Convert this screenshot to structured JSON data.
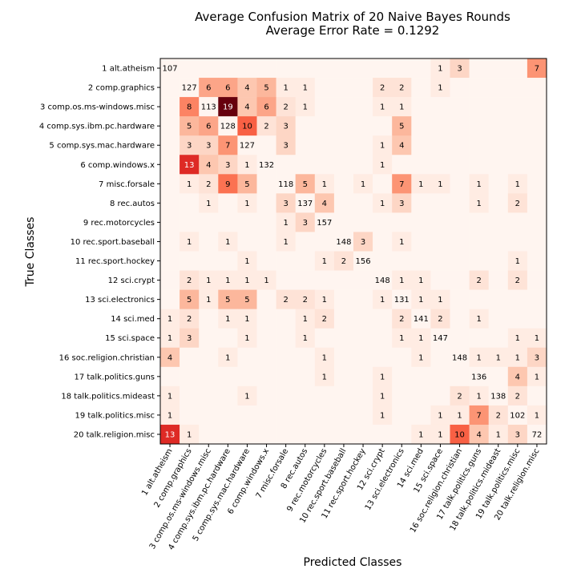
{
  "chart_data": {
    "type": "heatmap",
    "title": "Average Confusion Matrix of 20 Naive Bayes Rounds",
    "subtitle": "Average Error Rate = 0.1292",
    "xlabel": "Predicted Classes",
    "ylabel": "True Classes",
    "colormap": "Reds",
    "color_min": "#fff5f0",
    "color_max": "#67000d",
    "grid": false,
    "y_categories": [
      "1 alt.atheism",
      "2 comp.graphics",
      "3 comp.os.ms-windows.misc",
      "4 comp.sys.ibm.pc.hardware",
      "5 comp.sys.mac.hardware",
      "6 comp.windows.x",
      "7 misc.forsale",
      "8 rec.autos",
      "9 rec.motorcycles",
      "10 rec.sport.baseball",
      "11 rec.sport.hockey",
      "12 sci.crypt",
      "13 sci.electronics",
      "14 sci.med",
      "15 sci.space",
      "16 soc.religion.christian",
      "17 talk.politics.guns",
      "18 talk.politics.mideast",
      "19 talk.politics.misc",
      "20 talk.religion.misc"
    ],
    "x_categories": [
      "1 alt.atheism",
      "2 comp.graphics",
      "3 comp.os.ms-windows.misc",
      "4 comp.sys.ibm.pc.hardware",
      "5 comp.sys.mac.hardware",
      "6 comp.windows.x",
      "7 misc.forsale",
      "8 rec.autos",
      "9 rec.motorcycles",
      "10 rec.sport.baseball",
      "11 rec.sport.hockey",
      "12 sci.crypt",
      "13 sci.electronics",
      "14 sci.med",
      "15 sci.space",
      "16 soc.religion.christian",
      "17 talk.politics.guns",
      "18 talk.politics.mideast",
      "19 talk.politics.misc",
      "20 talk.religion.misc"
    ],
    "values": [
      [
        107,
        0,
        0,
        0,
        0,
        0,
        0,
        0,
        0,
        0,
        0,
        0,
        0,
        0,
        1,
        3,
        0,
        0,
        0,
        7
      ],
      [
        0,
        127,
        6,
        6,
        4,
        5,
        1,
        1,
        0,
        0,
        0,
        2,
        2,
        0,
        1,
        0,
        0,
        0,
        0,
        0
      ],
      [
        0,
        8,
        113,
        19,
        4,
        6,
        2,
        1,
        0,
        0,
        0,
        1,
        1,
        0,
        0,
        0,
        0,
        0,
        0,
        0
      ],
      [
        0,
        5,
        6,
        128,
        10,
        2,
        3,
        0,
        0,
        0,
        0,
        0,
        5,
        0,
        0,
        0,
        0,
        0,
        0,
        0
      ],
      [
        0,
        3,
        3,
        7,
        127,
        0,
        3,
        0,
        0,
        0,
        0,
        1,
        4,
        0,
        0,
        0,
        0,
        0,
        0,
        0
      ],
      [
        0,
        13,
        4,
        3,
        1,
        132,
        0,
        0,
        0,
        0,
        0,
        1,
        0,
        0,
        0,
        0,
        0,
        0,
        0,
        0
      ],
      [
        0,
        1,
        2,
        9,
        5,
        0,
        118,
        5,
        1,
        0,
        1,
        0,
        7,
        1,
        1,
        0,
        1,
        0,
        1,
        0
      ],
      [
        0,
        0,
        1,
        0,
        1,
        0,
        3,
        137,
        4,
        0,
        0,
        1,
        3,
        0,
        0,
        0,
        1,
        0,
        2,
        0
      ],
      [
        0,
        0,
        0,
        0,
        0,
        0,
        1,
        3,
        157,
        0,
        0,
        0,
        0,
        0,
        0,
        0,
        0,
        0,
        0,
        0
      ],
      [
        0,
        1,
        0,
        1,
        0,
        0,
        1,
        0,
        0,
        148,
        3,
        0,
        1,
        0,
        0,
        0,
        0,
        0,
        0,
        0
      ],
      [
        0,
        0,
        0,
        0,
        1,
        0,
        0,
        0,
        1,
        2,
        156,
        0,
        0,
        0,
        0,
        0,
        0,
        0,
        1,
        0
      ],
      [
        0,
        2,
        1,
        1,
        1,
        1,
        0,
        0,
        0,
        0,
        0,
        148,
        1,
        1,
        0,
        0,
        2,
        0,
        2,
        0
      ],
      [
        0,
        5,
        1,
        5,
        5,
        0,
        2,
        2,
        1,
        0,
        0,
        1,
        131,
        1,
        1,
        0,
        0,
        0,
        0,
        0
      ],
      [
        1,
        2,
        0,
        1,
        1,
        0,
        0,
        1,
        2,
        0,
        0,
        0,
        2,
        141,
        2,
        0,
        1,
        0,
        0,
        0
      ],
      [
        1,
        3,
        0,
        0,
        1,
        0,
        0,
        1,
        0,
        0,
        0,
        0,
        1,
        1,
        147,
        0,
        0,
        0,
        1,
        1
      ],
      [
        4,
        0,
        0,
        1,
        0,
        0,
        0,
        0,
        1,
        0,
        0,
        0,
        0,
        1,
        0,
        148,
        1,
        1,
        1,
        3
      ],
      [
        0,
        0,
        0,
        0,
        0,
        0,
        0,
        0,
        1,
        0,
        0,
        1,
        0,
        0,
        0,
        0,
        136,
        0,
        4,
        1
      ],
      [
        1,
        0,
        0,
        0,
        1,
        0,
        0,
        0,
        0,
        0,
        0,
        1,
        0,
        0,
        0,
        2,
        1,
        138,
        2,
        0
      ],
      [
        1,
        0,
        0,
        0,
        0,
        0,
        0,
        0,
        0,
        0,
        0,
        1,
        0,
        0,
        1,
        1,
        7,
        2,
        102,
        1
      ],
      [
        13,
        1,
        0,
        0,
        0,
        0,
        0,
        0,
        0,
        0,
        0,
        0,
        0,
        1,
        1,
        10,
        4,
        1,
        3,
        72
      ]
    ]
  }
}
